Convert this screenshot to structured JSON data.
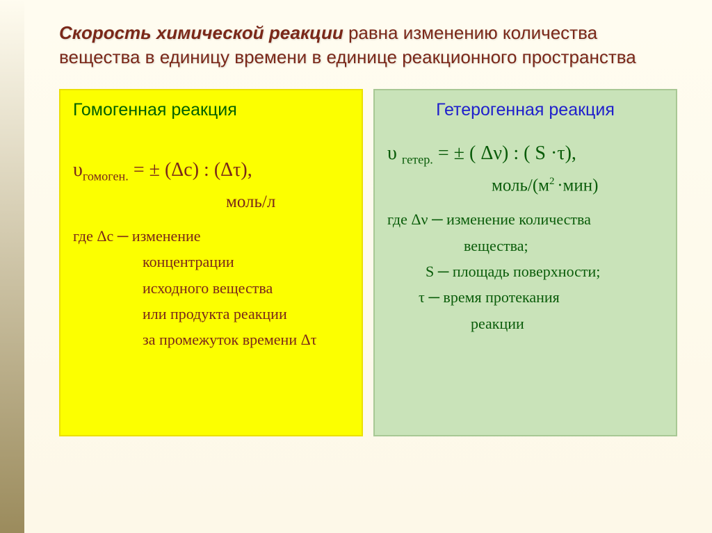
{
  "title": {
    "strong": "Скорость химической реакции",
    "rest": " равна изменению количества вещества в единицу времени в единице реакционного пространства"
  },
  "left": {
    "heading": "Гомогенная реакция",
    "formula_lhs": "υ",
    "formula_sub": "гомоген.",
    "formula_rhs": " =  ± (Δс) : (Δτ),",
    "units": "моль/л",
    "where": "где   Δс ─ изменение",
    "l2": "концентрации",
    "l3": "исходного вещества",
    "l4": "или продукта реакции",
    "l5": "за промежуток времени Δτ"
  },
  "right": {
    "heading": "Гетерогенная реакция",
    "formula_lhs": "υ ",
    "formula_sub": "гетер.",
    "formula_rhs": " =  ± ( Δν) : ( S ·τ),",
    "units_pre": "моль/(м",
    "units_sup": "2 ",
    "units_post": "·мин)",
    "w1": "где Δν ─ изменение количества",
    "w1b": "вещества;",
    "w2": "S ─ площадь поверхности;",
    "w3": "τ ─ время протекания",
    "w3b": "реакции"
  },
  "colors": {
    "title": "#7a2819",
    "left_bg": "#fcff00",
    "right_bg": "#c9e3b9",
    "left_text": "#7a2819",
    "right_text": "#0a5c0a",
    "right_heading": "#2020cc",
    "left_heading": "#006000"
  }
}
